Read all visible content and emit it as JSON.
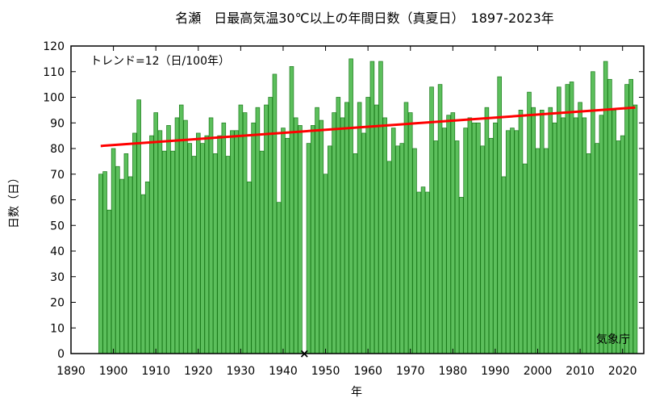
{
  "chart_data": {
    "type": "bar",
    "title": "名瀬　日最高気温30℃以上の年間日数（真夏日）　1897-2023年",
    "xlabel": "年",
    "ylabel": "日数（日）",
    "trend_label": "トレンド=12（日/100年）",
    "source": "気象庁",
    "xlim": [
      1890,
      2025
    ],
    "ylim": [
      0,
      120
    ],
    "xticks": [
      1890,
      1900,
      1910,
      1920,
      1930,
      1940,
      1950,
      1960,
      1970,
      1980,
      1990,
      2000,
      2010,
      2020
    ],
    "yticks": [
      0,
      10,
      20,
      30,
      40,
      50,
      60,
      70,
      80,
      90,
      100,
      110,
      120
    ],
    "grid": false,
    "bar_color": "#5cbf5c",
    "bar_edge_color": "#1a7a1a",
    "trend_color": "#ff0000",
    "missing_years": [
      1945
    ],
    "missing_marker": "×",
    "trend": {
      "x": [
        1897,
        2023
      ],
      "y": [
        81,
        96
      ]
    },
    "x": [
      1897,
      1898,
      1899,
      1900,
      1901,
      1902,
      1903,
      1904,
      1905,
      1906,
      1907,
      1908,
      1909,
      1910,
      1911,
      1912,
      1913,
      1914,
      1915,
      1916,
      1917,
      1918,
      1919,
      1920,
      1921,
      1922,
      1923,
      1924,
      1925,
      1926,
      1927,
      1928,
      1929,
      1930,
      1931,
      1932,
      1933,
      1934,
      1935,
      1936,
      1937,
      1938,
      1939,
      1940,
      1941,
      1942,
      1943,
      1944,
      1945,
      1946,
      1947,
      1948,
      1949,
      1950,
      1951,
      1952,
      1953,
      1954,
      1955,
      1956,
      1957,
      1958,
      1959,
      1960,
      1961,
      1962,
      1963,
      1964,
      1965,
      1966,
      1967,
      1968,
      1969,
      1970,
      1971,
      1972,
      1973,
      1974,
      1975,
      1976,
      1977,
      1978,
      1979,
      1980,
      1981,
      1982,
      1983,
      1984,
      1985,
      1986,
      1987,
      1988,
      1989,
      1990,
      1991,
      1992,
      1993,
      1994,
      1995,
      1996,
      1997,
      1998,
      1999,
      2000,
      2001,
      2002,
      2003,
      2004,
      2005,
      2006,
      2007,
      2008,
      2009,
      2010,
      2011,
      2012,
      2013,
      2014,
      2015,
      2016,
      2017,
      2018,
      2019,
      2020,
      2021,
      2022,
      2023
    ],
    "values": [
      70,
      71,
      56,
      80,
      73,
      68,
      78,
      69,
      86,
      99,
      62,
      67,
      85,
      94,
      87,
      79,
      89,
      79,
      92,
      97,
      91,
      82,
      77,
      86,
      82,
      85,
      92,
      78,
      85,
      90,
      77,
      87,
      87,
      97,
      94,
      67,
      90,
      96,
      79,
      97,
      100,
      109,
      59,
      88,
      84,
      112,
      92,
      89,
      null,
      82,
      89,
      96,
      91,
      70,
      81,
      94,
      100,
      92,
      98,
      115,
      78,
      98,
      86,
      100,
      114,
      97,
      114,
      92,
      75,
      88,
      81,
      82,
      98,
      94,
      80,
      63,
      65,
      63,
      104,
      83,
      105,
      88,
      93,
      94,
      83,
      61,
      88,
      92,
      90,
      90,
      81,
      96,
      84,
      90,
      108,
      69,
      87,
      88,
      87,
      95,
      74,
      102,
      96,
      80,
      95,
      80,
      96,
      90,
      104,
      92,
      105,
      106,
      92,
      98,
      92,
      78,
      110,
      82,
      93,
      114,
      107,
      95,
      83,
      85,
      105,
      107,
      97
    ]
  }
}
